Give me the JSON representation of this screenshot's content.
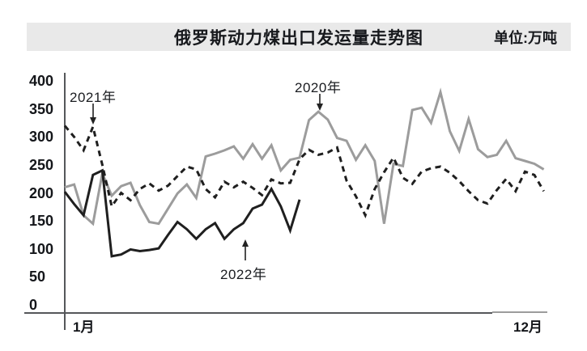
{
  "header": {
    "title": "俄罗斯动力煤出口发运量走势图",
    "unit_label": "单位:万吨"
  },
  "axes": {
    "y_ticks": [
      400,
      350,
      300,
      250,
      200,
      150,
      100,
      50,
      0
    ],
    "x_left_label": "1月",
    "x_right_label": "12月"
  },
  "annotations": {
    "label_2020": "2020年",
    "label_2021": "2021年",
    "label_2022": "2022年"
  },
  "colors": {
    "header_bg": "#e9e9e9",
    "axis": "#55575a",
    "axis_light": "#9c9c9c",
    "line_2020": "#9c9c9c",
    "line_2021": "#1f1f1f",
    "line_2022": "#1f1f1f",
    "text": "#14161a"
  },
  "chart_data": {
    "type": "line",
    "title": "俄罗斯动力煤出口发运量走势图",
    "unit": "万吨",
    "ylim": [
      0,
      400
    ],
    "y_tick_step": 50,
    "x_axis": {
      "start_label": "1月",
      "end_label": "12月",
      "points_per_year": 52
    },
    "grid": false,
    "legend": "inline-annotations",
    "series": [
      {
        "name": "2020年",
        "style": "solid",
        "color_key": "line_2020",
        "values": [
          210,
          215,
          160,
          145,
          235,
          195,
          212,
          218,
          178,
          148,
          145,
          172,
          199,
          215,
          191,
          265,
          270,
          276,
          283,
          261,
          287,
          261,
          285,
          240,
          259,
          263,
          330,
          345,
          331,
          298,
          293,
          259,
          285,
          257,
          145,
          252,
          248,
          348,
          352,
          325,
          380,
          310,
          275,
          332,
          278,
          264,
          268,
          293,
          262,
          257,
          252,
          242
        ]
      },
      {
        "name": "2021年",
        "style": "dashed",
        "color_key": "line_2021",
        "values": [
          320,
          300,
          276,
          318,
          250,
          176,
          200,
          187,
          207,
          217,
          204,
          213,
          230,
          247,
          242,
          207,
          192,
          220,
          210,
          220,
          209,
          196,
          224,
          217,
          218,
          260,
          277,
          268,
          272,
          281,
          222,
          194,
          160,
          207,
          237,
          263,
          227,
          216,
          238,
          244,
          247,
          236,
          221,
          203,
          187,
          181,
          205,
          225,
          203,
          238,
          232,
          203
        ]
      },
      {
        "name": "2022年",
        "style": "solid",
        "color_key": "line_2022",
        "values": [
          202,
          180,
          160,
          232,
          240,
          87,
          90,
          99,
          96,
          98,
          101,
          125,
          148,
          135,
          118,
          135,
          146,
          118,
          135,
          146,
          172,
          179,
          207,
          176,
          133,
          188
        ]
      }
    ]
  }
}
